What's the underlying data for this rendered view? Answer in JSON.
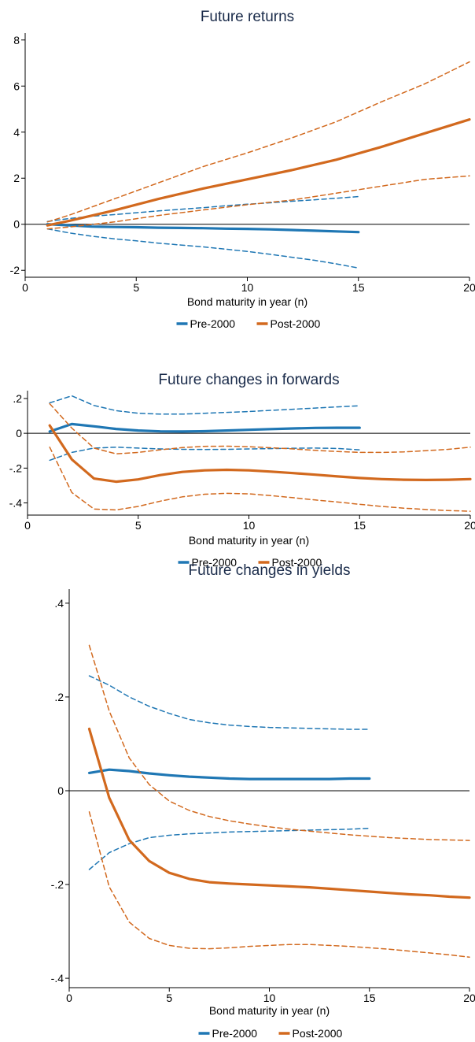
{
  "colors": {
    "pre": "#1f77b4",
    "post": "#d2691e",
    "axis": "#000000",
    "title": "#1a2b4a"
  },
  "chart_data": [
    {
      "type": "line",
      "title": "Future returns",
      "xlabel": "Bond maturity in year (n)",
      "ylabel": "",
      "xlim": [
        0,
        20
      ],
      "ylim": [
        -2.3,
        8.3
      ],
      "xticks": [
        0,
        5,
        10,
        15,
        20
      ],
      "yticks": [
        -2,
        0,
        2,
        4,
        6,
        8
      ],
      "ytick_labels": [
        "-2",
        "0",
        "2",
        "4",
        "6",
        "8"
      ],
      "zero_line": true,
      "legend": {
        "position": "bottom",
        "entries": [
          "Pre-2000",
          "Post-2000"
        ]
      },
      "series": [
        {
          "name": "Pre-2000",
          "style": "solid",
          "x": [
            1,
            2,
            3,
            4,
            5,
            6,
            7,
            8,
            9,
            10,
            11,
            12,
            13,
            14,
            15
          ],
          "y": [
            0.0,
            -0.05,
            -0.1,
            -0.12,
            -0.13,
            -0.15,
            -0.16,
            -0.17,
            -0.19,
            -0.2,
            -0.22,
            -0.25,
            -0.28,
            -0.31,
            -0.34
          ]
        },
        {
          "name": "Pre-2000 upper CI",
          "style": "dashed",
          "x": [
            1,
            2,
            3,
            4,
            5,
            6,
            7,
            8,
            9,
            10,
            11,
            12,
            13,
            14,
            15
          ],
          "y": [
            0.12,
            0.25,
            0.35,
            0.42,
            0.5,
            0.58,
            0.65,
            0.72,
            0.8,
            0.87,
            0.93,
            1.0,
            1.06,
            1.13,
            1.2
          ]
        },
        {
          "name": "Pre-2000 lower CI",
          "style": "dashed",
          "x": [
            1,
            2,
            3,
            4,
            5,
            6,
            7,
            8,
            9,
            10,
            11,
            12,
            13,
            14,
            15
          ],
          "y": [
            -0.2,
            -0.38,
            -0.52,
            -0.63,
            -0.72,
            -0.82,
            -0.9,
            -0.98,
            -1.08,
            -1.18,
            -1.3,
            -1.43,
            -1.56,
            -1.72,
            -1.9
          ]
        },
        {
          "name": "Post-2000",
          "style": "solid",
          "x": [
            1,
            2,
            4,
            6,
            8,
            10,
            12,
            14,
            16,
            18,
            20
          ],
          "y": [
            -0.05,
            0.15,
            0.6,
            1.1,
            1.55,
            1.95,
            2.35,
            2.8,
            3.35,
            3.95,
            4.55
          ]
        },
        {
          "name": "Post-2000 upper CI",
          "style": "dashed",
          "x": [
            1,
            2,
            4,
            6,
            8,
            10,
            12,
            14,
            16,
            18,
            20
          ],
          "y": [
            0.1,
            0.4,
            1.1,
            1.8,
            2.5,
            3.1,
            3.75,
            4.45,
            5.3,
            6.1,
            7.05
          ]
        },
        {
          "name": "Post-2000 lower CI",
          "style": "dashed",
          "x": [
            1,
            2,
            4,
            6,
            8,
            10,
            12,
            14,
            16,
            18,
            20
          ],
          "y": [
            -0.2,
            -0.12,
            0.1,
            0.38,
            0.62,
            0.85,
            1.05,
            1.35,
            1.65,
            1.95,
            2.1
          ]
        }
      ]
    },
    {
      "type": "line",
      "title": "Future changes in forwards",
      "xlabel": "Bond maturity in year (n)",
      "ylabel": "",
      "xlim": [
        0,
        20
      ],
      "ylim": [
        -0.47,
        0.245
      ],
      "xticks": [
        0,
        5,
        10,
        15,
        20
      ],
      "yticks": [
        -0.4,
        -0.2,
        0,
        0.2
      ],
      "ytick_labels": [
        "-.4",
        "-.2",
        "0",
        ".2"
      ],
      "zero_line": true,
      "legend": {
        "position": "bottom",
        "entries": [
          "Pre-2000",
          "Post-2000"
        ]
      },
      "series": [
        {
          "name": "Pre-2000",
          "style": "solid",
          "x": [
            1,
            2,
            3,
            4,
            5,
            6,
            7,
            8,
            9,
            10,
            11,
            12,
            13,
            14,
            15
          ],
          "y": [
            0.01,
            0.053,
            0.04,
            0.025,
            0.016,
            0.011,
            0.01,
            0.012,
            0.016,
            0.02,
            0.024,
            0.028,
            0.031,
            0.032,
            0.032
          ]
        },
        {
          "name": "Pre-2000 upper CI",
          "style": "dashed",
          "x": [
            1,
            2,
            3,
            4,
            5,
            6,
            7,
            8,
            9,
            10,
            11,
            12,
            13,
            14,
            15
          ],
          "y": [
            0.175,
            0.215,
            0.16,
            0.13,
            0.115,
            0.11,
            0.11,
            0.115,
            0.12,
            0.125,
            0.132,
            0.138,
            0.145,
            0.152,
            0.158
          ]
        },
        {
          "name": "Pre-2000 lower CI",
          "style": "dashed",
          "x": [
            1,
            2,
            3,
            4,
            5,
            6,
            7,
            8,
            9,
            10,
            11,
            12,
            13,
            14,
            15
          ],
          "y": [
            -0.155,
            -0.11,
            -0.085,
            -0.08,
            -0.085,
            -0.09,
            -0.092,
            -0.093,
            -0.092,
            -0.09,
            -0.088,
            -0.086,
            -0.085,
            -0.087,
            -0.095
          ]
        },
        {
          "name": "Post-2000",
          "style": "solid",
          "x": [
            1,
            2,
            3,
            4,
            5,
            6,
            7,
            8,
            9,
            10,
            11,
            12,
            13,
            14,
            15,
            16,
            17,
            18,
            19,
            20
          ],
          "y": [
            0.045,
            -0.15,
            -0.26,
            -0.278,
            -0.265,
            -0.24,
            -0.222,
            -0.213,
            -0.21,
            -0.213,
            -0.22,
            -0.229,
            -0.238,
            -0.248,
            -0.257,
            -0.263,
            -0.267,
            -0.268,
            -0.267,
            -0.263
          ]
        },
        {
          "name": "Post-2000 upper CI",
          "style": "dashed",
          "x": [
            1,
            2,
            3,
            4,
            5,
            6,
            7,
            8,
            9,
            10,
            11,
            12,
            13,
            14,
            15,
            16,
            17,
            18,
            19,
            20
          ],
          "y": [
            0.17,
            0.03,
            -0.085,
            -0.118,
            -0.11,
            -0.095,
            -0.082,
            -0.075,
            -0.074,
            -0.077,
            -0.083,
            -0.09,
            -0.098,
            -0.105,
            -0.11,
            -0.11,
            -0.107,
            -0.1,
            -0.092,
            -0.08
          ]
        },
        {
          "name": "Post-2000 lower CI",
          "style": "dashed",
          "x": [
            1,
            2,
            3,
            4,
            5,
            6,
            7,
            8,
            9,
            10,
            11,
            12,
            13,
            14,
            15,
            16,
            17,
            18,
            19,
            20
          ],
          "y": [
            -0.08,
            -0.34,
            -0.435,
            -0.44,
            -0.42,
            -0.39,
            -0.365,
            -0.35,
            -0.345,
            -0.348,
            -0.358,
            -0.37,
            -0.383,
            -0.395,
            -0.408,
            -0.42,
            -0.43,
            -0.438,
            -0.444,
            -0.448
          ]
        }
      ]
    },
    {
      "type": "line",
      "title": "Future changes in yields",
      "xlabel": "Bond maturity in year (n)",
      "ylabel": "",
      "xlim": [
        0,
        20
      ],
      "ylim": [
        -0.42,
        0.43
      ],
      "xticks": [
        0,
        5,
        10,
        15,
        20
      ],
      "yticks": [
        -0.4,
        -0.2,
        0,
        0.2,
        0.4
      ],
      "ytick_labels": [
        "-.4",
        "-.2",
        "0",
        ".2",
        ".4"
      ],
      "zero_line": true,
      "legend": {
        "position": "bottom",
        "entries": [
          "Pre-2000",
          "Post-2000"
        ]
      },
      "series": [
        {
          "name": "Pre-2000",
          "style": "solid",
          "x": [
            1,
            2,
            3,
            4,
            5,
            6,
            7,
            8,
            9,
            10,
            11,
            12,
            13,
            14,
            15
          ],
          "y": [
            0.038,
            0.045,
            0.042,
            0.037,
            0.033,
            0.03,
            0.028,
            0.026,
            0.025,
            0.025,
            0.025,
            0.025,
            0.025,
            0.026,
            0.026
          ]
        },
        {
          "name": "Pre-2000 upper CI",
          "style": "dashed",
          "x": [
            1,
            2,
            3,
            4,
            5,
            6,
            7,
            8,
            9,
            10,
            11,
            12,
            13,
            14,
            15
          ],
          "y": [
            0.245,
            0.225,
            0.2,
            0.18,
            0.165,
            0.152,
            0.145,
            0.14,
            0.137,
            0.135,
            0.134,
            0.133,
            0.132,
            0.131,
            0.131
          ]
        },
        {
          "name": "Pre-2000 lower CI",
          "style": "dashed",
          "x": [
            1,
            2,
            3,
            4,
            5,
            6,
            7,
            8,
            9,
            10,
            11,
            12,
            13,
            14,
            15
          ],
          "y": [
            -0.168,
            -0.132,
            -0.113,
            -0.1,
            -0.095,
            -0.092,
            -0.09,
            -0.088,
            -0.087,
            -0.086,
            -0.085,
            -0.084,
            -0.083,
            -0.082,
            -0.08
          ]
        },
        {
          "name": "Post-2000",
          "style": "solid",
          "x": [
            1,
            2,
            3,
            4,
            5,
            6,
            7,
            8,
            9,
            10,
            11,
            12,
            13,
            14,
            15,
            16,
            17,
            18,
            19,
            20
          ],
          "y": [
            0.132,
            -0.015,
            -0.105,
            -0.15,
            -0.175,
            -0.188,
            -0.195,
            -0.198,
            -0.2,
            -0.202,
            -0.204,
            -0.206,
            -0.209,
            -0.212,
            -0.215,
            -0.218,
            -0.221,
            -0.223,
            -0.226,
            -0.228
          ]
        },
        {
          "name": "Post-2000 upper CI",
          "style": "dashed",
          "x": [
            1,
            2,
            3,
            4,
            5,
            6,
            7,
            8,
            9,
            10,
            11,
            12,
            13,
            14,
            15,
            16,
            17,
            18,
            19,
            20
          ],
          "y": [
            0.31,
            0.17,
            0.07,
            0.013,
            -0.022,
            -0.042,
            -0.055,
            -0.064,
            -0.071,
            -0.077,
            -0.082,
            -0.086,
            -0.09,
            -0.094,
            -0.097,
            -0.1,
            -0.102,
            -0.104,
            -0.105,
            -0.106
          ]
        },
        {
          "name": "Post-2000 lower CI",
          "style": "dashed",
          "x": [
            1,
            2,
            3,
            4,
            5,
            6,
            7,
            8,
            9,
            10,
            11,
            12,
            13,
            14,
            15,
            16,
            17,
            18,
            19,
            20
          ],
          "y": [
            -0.045,
            -0.205,
            -0.28,
            -0.315,
            -0.33,
            -0.336,
            -0.337,
            -0.335,
            -0.332,
            -0.33,
            -0.328,
            -0.328,
            -0.33,
            -0.332,
            -0.335,
            -0.338,
            -0.342,
            -0.346,
            -0.35,
            -0.355
          ]
        }
      ]
    }
  ]
}
